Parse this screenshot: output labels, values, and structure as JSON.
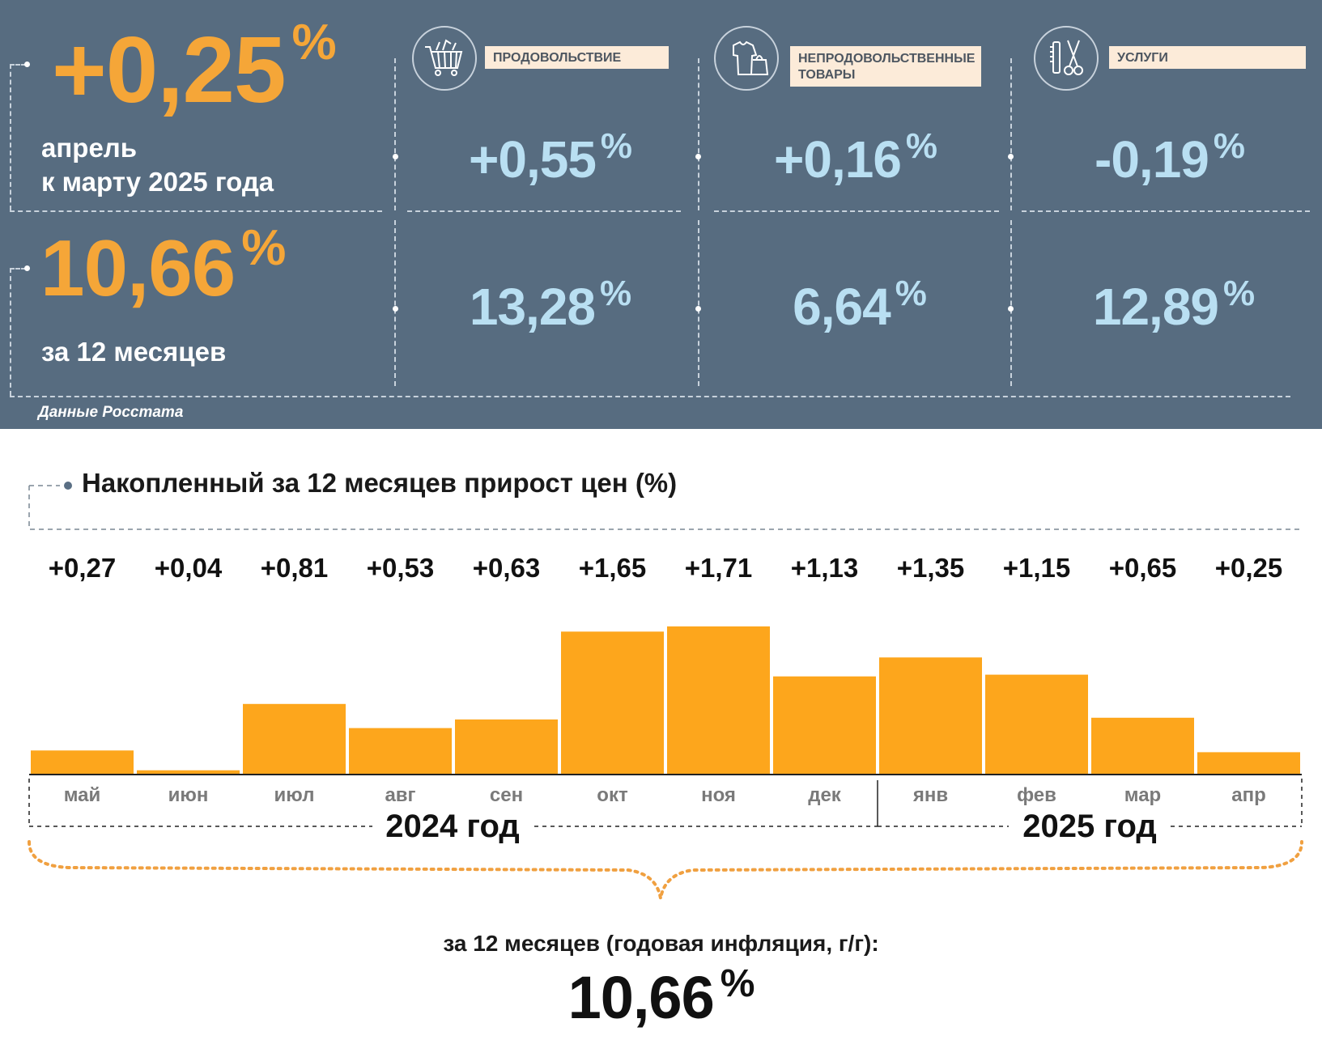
{
  "headline": {
    "monthly_value": "+0,25",
    "monthly_unit": "%",
    "monthly_caption_line1": "апрель",
    "monthly_caption_line2": "к марту 2025 года",
    "annual_value": "10,66",
    "annual_unit": "%",
    "annual_caption": "за 12 месяцев"
  },
  "categories": [
    {
      "label": "ПРОДОВОЛЬСТВИЕ",
      "icon": "shopping-cart-icon",
      "monthly": "+0,55",
      "annual": "13,28",
      "unit": "%"
    },
    {
      "label": "НЕПРОДОВОЛЬСТВЕННЫЕ ТОВАРЫ",
      "icon": "clothes-bag-icon",
      "monthly": "+0,16",
      "annual": "6,64",
      "unit": "%"
    },
    {
      "label": "УСЛУГИ",
      "icon": "comb-scissors-icon",
      "monthly": "-0,19",
      "annual": "12,89",
      "unit": "%"
    }
  ],
  "source": "Данные Росстата",
  "chart_title": "Накопленный за 12 месяцев прирост цен (%)",
  "chart_data": {
    "type": "bar",
    "title": "Накопленный за 12 месяцев прирост цен (%)",
    "categories": [
      "май",
      "июн",
      "июл",
      "авг",
      "сен",
      "окт",
      "ноя",
      "дек",
      "янв",
      "фев",
      "мар",
      "апр"
    ],
    "values": [
      0.27,
      0.04,
      0.81,
      0.53,
      0.63,
      1.65,
      1.71,
      1.13,
      1.35,
      1.15,
      0.65,
      0.25
    ],
    "value_labels": [
      "+0,27",
      "+0,04",
      "+0,81",
      "+0,53",
      "+0,63",
      "+1,65",
      "+1,71",
      "+1,13",
      "+1,35",
      "+1,15",
      "+0,65",
      "+0,25"
    ],
    "years": [
      {
        "label": "2024 год",
        "months": 8
      },
      {
        "label": "2025 год",
        "months": 4
      }
    ],
    "bar_color": "#fda61c"
  },
  "summary": {
    "caption": "за 12 месяцев (годовая инфляция, г/г):",
    "value": "10,66",
    "unit": "%"
  },
  "colors": {
    "panel_bg": "#576c80",
    "accent_orange": "#f5a638",
    "value_blue": "#b9dff2",
    "label_bg": "#fcebd9"
  }
}
